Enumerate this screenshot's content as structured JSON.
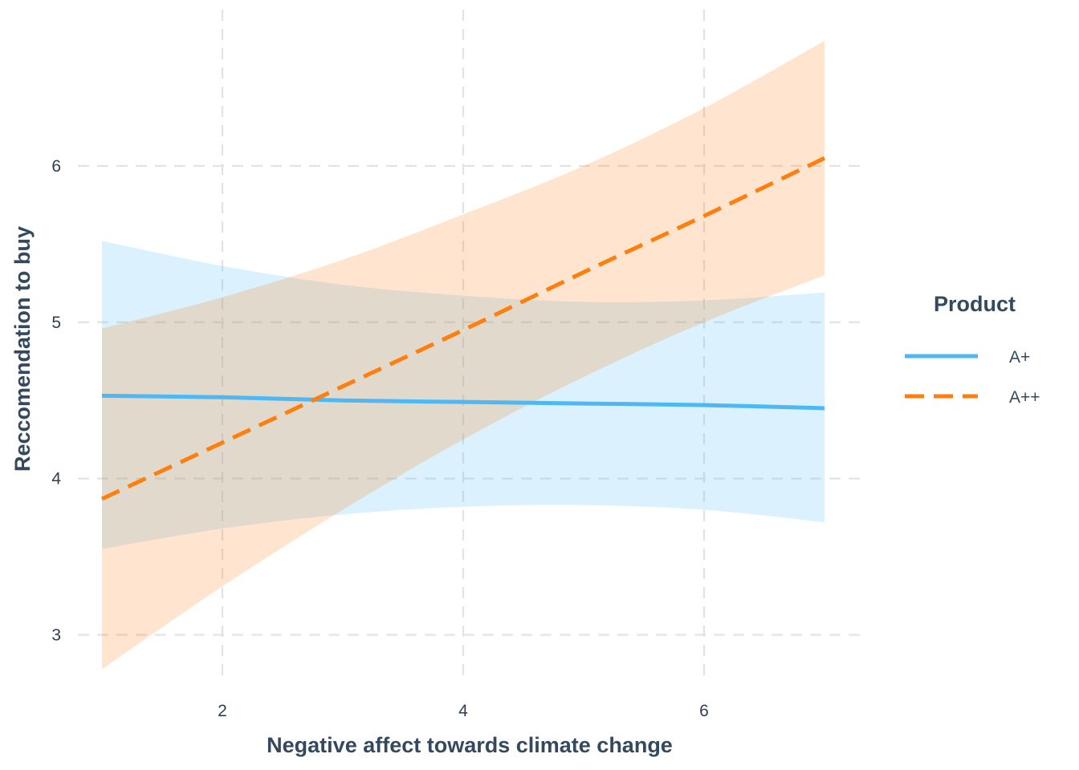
{
  "chart_data": {
    "type": "line",
    "title": "",
    "xlabel": "Negative affect towards climate change",
    "ylabel": "Reccomendation to buy",
    "xlim": [
      0.8,
      7.3
    ],
    "ylim": [
      2.7,
      7.0
    ],
    "x_ticks": [
      2,
      4,
      6
    ],
    "y_ticks": [
      3,
      4,
      5,
      6
    ],
    "grid": true,
    "legend": {
      "title": "Product",
      "placement": "right"
    },
    "series": [
      {
        "name": "A+",
        "color": "#4db8f5",
        "line_style": "solid",
        "x": [
          1,
          2,
          3,
          4,
          5,
          6,
          7
        ],
        "y": [
          4.53,
          4.52,
          4.5,
          4.49,
          4.48,
          4.47,
          4.45
        ],
        "ci_lower": [
          3.55,
          3.68,
          3.77,
          3.82,
          3.83,
          3.8,
          3.72
        ],
        "ci_upper": [
          5.52,
          5.36,
          5.24,
          5.17,
          5.13,
          5.14,
          5.19
        ]
      },
      {
        "name": "A++",
        "color": "#ff7f0e",
        "line_style": "dashed",
        "x": [
          1,
          2,
          3,
          4,
          5,
          6,
          7
        ],
        "y": [
          3.87,
          4.23,
          4.59,
          4.95,
          5.32,
          5.68,
          6.05
        ],
        "ci_lower": [
          2.78,
          3.31,
          3.8,
          4.25,
          4.65,
          5.0,
          5.3
        ],
        "ci_upper": [
          4.96,
          5.16,
          5.4,
          5.69,
          6.0,
          6.37,
          6.8
        ]
      }
    ]
  }
}
